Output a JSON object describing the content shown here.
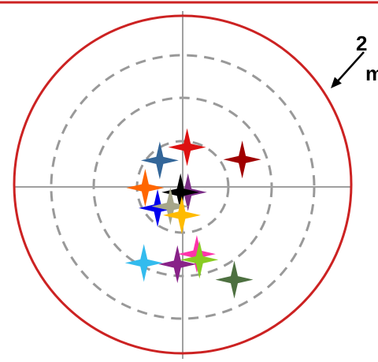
{
  "annotation": {
    "line1": "2",
    "line2": "m"
  },
  "colors": {
    "top_border": "#cc2222",
    "outer_ring": "#cc2222",
    "dashed_rings": "#999999",
    "crosshair": "#a0a0a0",
    "arrow": "#000000"
  },
  "markers": [
    {
      "name": "marker-red",
      "color": "#dd1111",
      "x": 0.1,
      "y": 0.9
    },
    {
      "name": "marker-dark-red",
      "color": "#a00000",
      "x": 1.35,
      "y": 0.62
    },
    {
      "name": "marker-steel-blue",
      "color": "#336699",
      "x": -0.52,
      "y": 0.6
    },
    {
      "name": "marker-orange",
      "color": "#ff6600",
      "x": -0.85,
      "y": -0.02
    },
    {
      "name": "marker-purple",
      "color": "#7a2b86",
      "x": 0.12,
      "y": -0.12
    },
    {
      "name": "marker-black",
      "color": "#000000",
      "x": -0.05,
      "y": -0.12
    },
    {
      "name": "marker-blue",
      "color": "#0000ee",
      "x": -0.57,
      "y": -0.48
    },
    {
      "name": "marker-tan",
      "color": "#a6a68a",
      "x": -0.28,
      "y": -0.44
    },
    {
      "name": "marker-gold",
      "color": "#ffbb00",
      "x": -0.02,
      "y": -0.64
    },
    {
      "name": "marker-magenta",
      "color": "#ff33aa",
      "x": 0.32,
      "y": -1.52
    },
    {
      "name": "marker-light-green",
      "color": "#88cc22",
      "x": 0.38,
      "y": -1.65
    },
    {
      "name": "marker-sky-blue",
      "color": "#33bbee",
      "x": -0.88,
      "y": -1.72
    },
    {
      "name": "marker-violet",
      "color": "#882288",
      "x": -0.12,
      "y": -1.75
    },
    {
      "name": "marker-dark-green",
      "color": "#4d7040",
      "x": 1.17,
      "y": -2.1
    }
  ]
}
